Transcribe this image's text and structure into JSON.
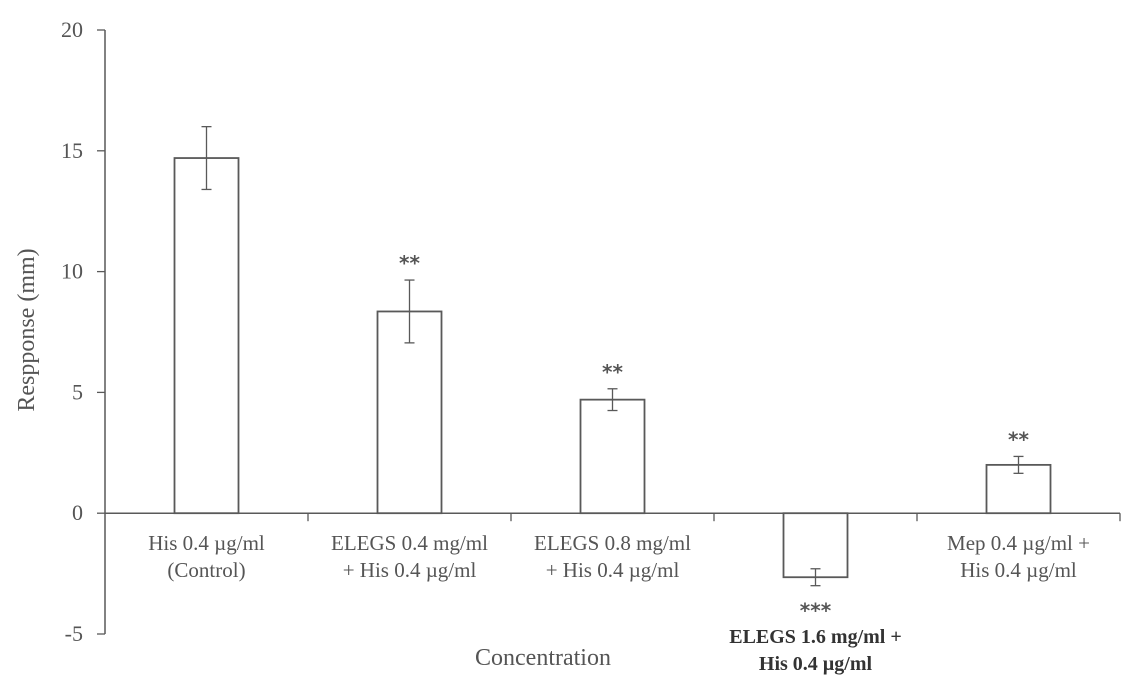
{
  "chart_data": {
    "type": "bar",
    "xlabel": "Concentration",
    "ylabel": "Respponse (mm)",
    "ylim": [
      -5,
      20
    ],
    "yticks": [
      -5,
      0,
      5,
      10,
      15,
      20
    ],
    "categories": [
      [
        "His 0.4 µg/ml",
        "(Control)"
      ],
      [
        "ELEGS 0.4 mg/ml",
        "+ His 0.4 µg/ml"
      ],
      [
        "ELEGS 0.8 mg/ml",
        "+ His 0.4 µg/ml"
      ],
      [
        "ELEGS 1.6 mg/ml +",
        "His 0.4 µg/ml"
      ],
      [
        "Mep 0.4 µg/ml +",
        "His 0.4 µg/ml"
      ]
    ],
    "values": [
      14.7,
      8.35,
      4.7,
      -2.65,
      2.0
    ],
    "errors": [
      1.3,
      1.3,
      0.45,
      0.35,
      0.35
    ],
    "significance": [
      "",
      "**",
      "**",
      "***",
      "**"
    ],
    "grid": false,
    "legend": "none"
  }
}
